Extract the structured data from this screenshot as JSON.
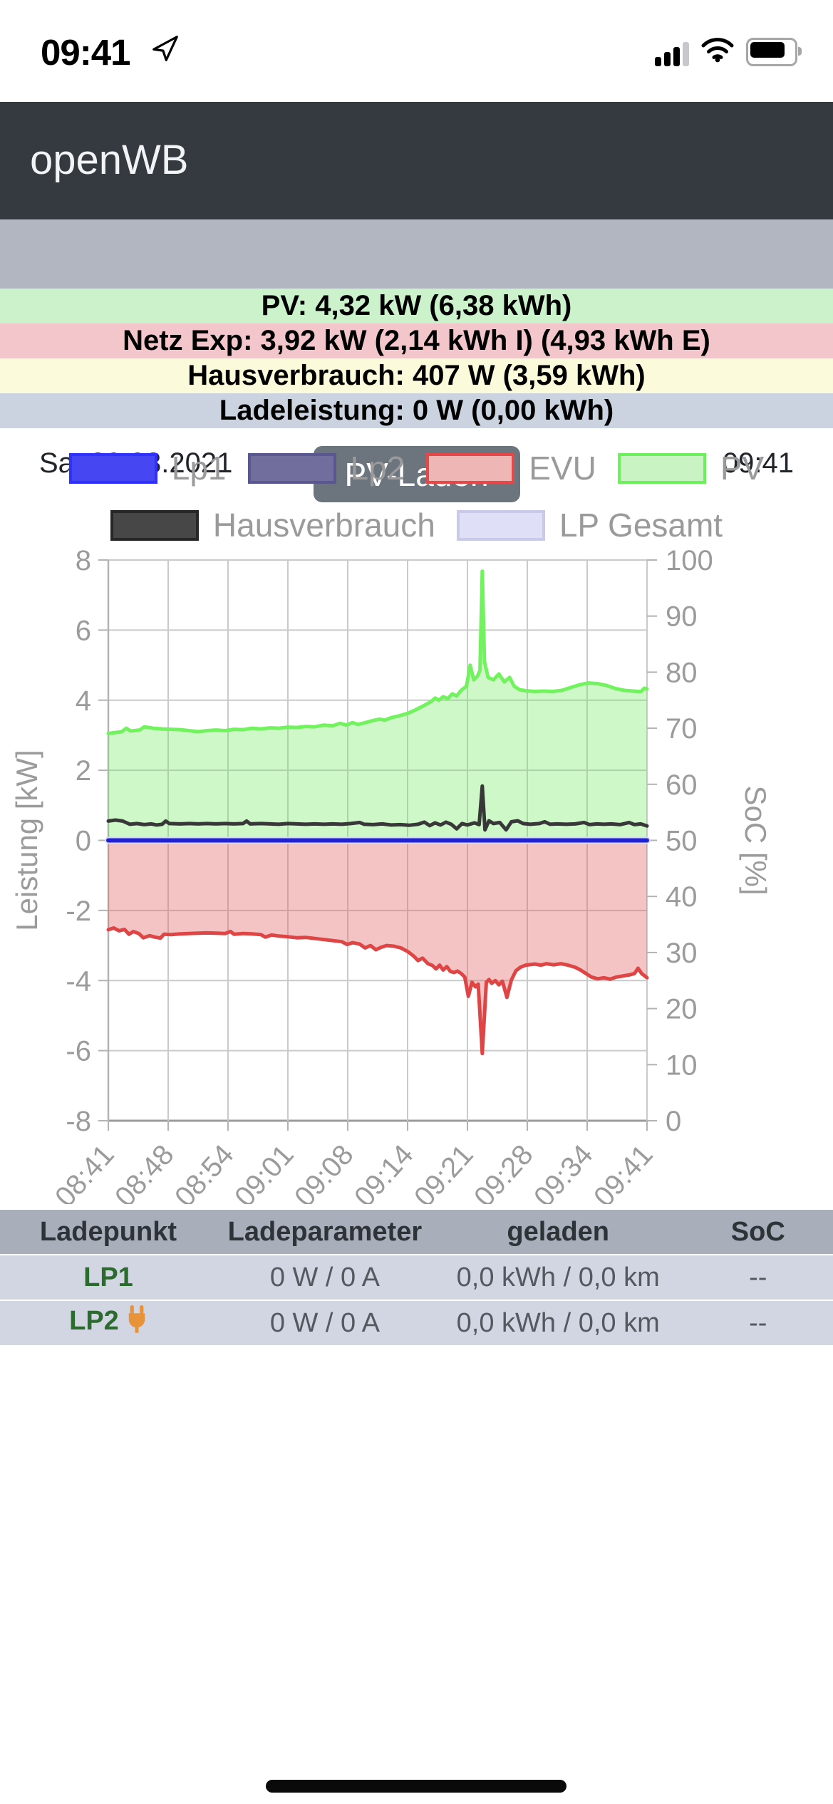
{
  "status_bar": {
    "time": "09:41"
  },
  "header": {
    "app_title": "openWB"
  },
  "sub_header": {
    "date": "Sa, 20.03.2021",
    "mode_button_label": "PV-Laden",
    "time": "09:41"
  },
  "status_rows": {
    "pv": {
      "text": "PV: 4,32 kW (6,38 kWh)",
      "bg": "#ccf2cc"
    },
    "grid": {
      "text": "Netz Exp: 3,92 kW (2,14 kWh I) (4,93 kWh E)",
      "bg": "#f2c6ca"
    },
    "house": {
      "text": "Hausverbrauch: 407 W (3,59 kWh)",
      "bg": "#fbfbdb"
    },
    "charge": {
      "text": "Ladeleistung: 0 W (0,00 kWh)",
      "bg": "#ccd3e0"
    }
  },
  "chart_data": {
    "type": "line",
    "y_left_label": "Leistung [kW]",
    "y_right_label": "SoC [%]",
    "x_tick_labels": [
      "08:41",
      "08:48",
      "08:54",
      "09:01",
      "09:08",
      "09:14",
      "09:21",
      "09:28",
      "09:34",
      "09:41"
    ],
    "y_left_ticks": [
      8,
      6,
      4,
      2,
      0,
      -2,
      -4,
      -6,
      -8
    ],
    "y_right_ticks": [
      100,
      90,
      80,
      70,
      60,
      50,
      40,
      30,
      20,
      10,
      0
    ],
    "y_left_range": [
      -8,
      8
    ],
    "y_right_range": [
      0,
      100
    ],
    "x_range_minutes": [
      0,
      60
    ],
    "grid": true,
    "legend_position": "top",
    "legend": [
      {
        "label": "Lp1",
        "fill": "#4646f2",
        "border": "#3030ff"
      },
      {
        "label": "Lp2",
        "fill": "#716d9c",
        "border": "#5a5690"
      },
      {
        "label": "EVU",
        "fill": "#efb6b6",
        "border": "#e44848"
      },
      {
        "label": "PV",
        "fill": "#c9f3c2",
        "border": "#6cf05c"
      },
      {
        "label": "Hausverbrauch",
        "fill": "#474747",
        "border": "#262626"
      },
      {
        "label": "LP Gesamt",
        "fill": "#dfdff8",
        "border": "#c9c9ea"
      }
    ],
    "series": [
      {
        "name": "PV",
        "color": "#72f25e",
        "fill": "rgba(110,235,90,0.33)",
        "width": 5,
        "points": [
          [
            0,
            3.05
          ],
          [
            1.5,
            3.1
          ],
          [
            2,
            3.2
          ],
          [
            2.5,
            3.12
          ],
          [
            3.5,
            3.15
          ],
          [
            4,
            3.24
          ],
          [
            5,
            3.2
          ],
          [
            6,
            3.18
          ],
          [
            7,
            3.17
          ],
          [
            8,
            3.16
          ],
          [
            9,
            3.13
          ],
          [
            10,
            3.1
          ],
          [
            11,
            3.13
          ],
          [
            12,
            3.15
          ],
          [
            13,
            3.13
          ],
          [
            14,
            3.17
          ],
          [
            15,
            3.16
          ],
          [
            16,
            3.2
          ],
          [
            17,
            3.18
          ],
          [
            18,
            3.21
          ],
          [
            19,
            3.2
          ],
          [
            20,
            3.23
          ],
          [
            21,
            3.22
          ],
          [
            22,
            3.25
          ],
          [
            23,
            3.24
          ],
          [
            24,
            3.29
          ],
          [
            25,
            3.27
          ],
          [
            25.8,
            3.34
          ],
          [
            26.5,
            3.29
          ],
          [
            27.2,
            3.36
          ],
          [
            27.8,
            3.31
          ],
          [
            28.5,
            3.35
          ],
          [
            29.5,
            3.42
          ],
          [
            30.2,
            3.46
          ],
          [
            30.8,
            3.43
          ],
          [
            31.5,
            3.5
          ],
          [
            32.5,
            3.56
          ],
          [
            33.5,
            3.64
          ],
          [
            34.2,
            3.72
          ],
          [
            34.8,
            3.8
          ],
          [
            35.4,
            3.88
          ],
          [
            36,
            3.97
          ],
          [
            36.4,
            4.06
          ],
          [
            36.8,
            4.0
          ],
          [
            37.3,
            4.1
          ],
          [
            37.8,
            4.04
          ],
          [
            38.3,
            4.18
          ],
          [
            38.8,
            4.12
          ],
          [
            39.3,
            4.28
          ],
          [
            39.9,
            4.4
          ],
          [
            40.3,
            5.0
          ],
          [
            40.7,
            4.58
          ],
          [
            41.1,
            4.68
          ],
          [
            41.4,
            4.85
          ],
          [
            41.65,
            7.68
          ],
          [
            41.9,
            5.1
          ],
          [
            42.3,
            4.65
          ],
          [
            42.9,
            4.58
          ],
          [
            43.5,
            4.75
          ],
          [
            44.1,
            4.52
          ],
          [
            44.7,
            4.65
          ],
          [
            45.2,
            4.4
          ],
          [
            45.8,
            4.3
          ],
          [
            46.5,
            4.27
          ],
          [
            47.5,
            4.25
          ],
          [
            48.5,
            4.26
          ],
          [
            49.5,
            4.25
          ],
          [
            50.5,
            4.28
          ],
          [
            51.5,
            4.36
          ],
          [
            52.5,
            4.44
          ],
          [
            53.5,
            4.49
          ],
          [
            54.5,
            4.47
          ],
          [
            55.5,
            4.42
          ],
          [
            56.5,
            4.33
          ],
          [
            57.5,
            4.28
          ],
          [
            58.5,
            4.26
          ],
          [
            59.3,
            4.24
          ],
          [
            59.7,
            4.34
          ],
          [
            60,
            4.32
          ]
        ]
      },
      {
        "name": "EVU",
        "color": "#e04545",
        "fill": "rgba(225,90,90,0.36)",
        "width": 5,
        "points": [
          [
            0,
            -2.55
          ],
          [
            0.6,
            -2.5
          ],
          [
            1.2,
            -2.58
          ],
          [
            1.8,
            -2.54
          ],
          [
            2.3,
            -2.68
          ],
          [
            2.8,
            -2.6
          ],
          [
            3.4,
            -2.66
          ],
          [
            3.9,
            -2.78
          ],
          [
            4.6,
            -2.72
          ],
          [
            5.2,
            -2.76
          ],
          [
            5.8,
            -2.79
          ],
          [
            6.2,
            -2.68
          ],
          [
            7,
            -2.69
          ],
          [
            8,
            -2.67
          ],
          [
            9,
            -2.66
          ],
          [
            10,
            -2.65
          ],
          [
            11,
            -2.64
          ],
          [
            12,
            -2.65
          ],
          [
            13,
            -2.66
          ],
          [
            13.6,
            -2.6
          ],
          [
            14,
            -2.68
          ],
          [
            15,
            -2.66
          ],
          [
            16,
            -2.67
          ],
          [
            17,
            -2.69
          ],
          [
            17.5,
            -2.76
          ],
          [
            18.2,
            -2.7
          ],
          [
            19,
            -2.73
          ],
          [
            20,
            -2.75
          ],
          [
            21,
            -2.78
          ],
          [
            22,
            -2.77
          ],
          [
            23,
            -2.8
          ],
          [
            24,
            -2.83
          ],
          [
            25,
            -2.86
          ],
          [
            26,
            -2.89
          ],
          [
            26.6,
            -2.97
          ],
          [
            27.2,
            -2.92
          ],
          [
            28,
            -2.96
          ],
          [
            28.6,
            -3.07
          ],
          [
            29.2,
            -3.0
          ],
          [
            29.8,
            -3.12
          ],
          [
            30.4,
            -3.05
          ],
          [
            31,
            -3.0
          ],
          [
            31.8,
            -3.02
          ],
          [
            32.6,
            -3.07
          ],
          [
            33.4,
            -3.18
          ],
          [
            34,
            -3.3
          ],
          [
            34.5,
            -3.43
          ],
          [
            35,
            -3.36
          ],
          [
            35.6,
            -3.52
          ],
          [
            36.1,
            -3.57
          ],
          [
            36.5,
            -3.67
          ],
          [
            36.9,
            -3.56
          ],
          [
            37.3,
            -3.7
          ],
          [
            37.7,
            -3.6
          ],
          [
            38.1,
            -3.74
          ],
          [
            38.5,
            -3.77
          ],
          [
            38.9,
            -3.73
          ],
          [
            39.3,
            -3.8
          ],
          [
            39.7,
            -3.9
          ],
          [
            40.1,
            -4.45
          ],
          [
            40.5,
            -4.05
          ],
          [
            40.9,
            -4.18
          ],
          [
            41.2,
            -4.1
          ],
          [
            41.65,
            -6.08
          ],
          [
            42.1,
            -4.05
          ],
          [
            42.4,
            -3.97
          ],
          [
            42.7,
            -4.08
          ],
          [
            43.1,
            -4.0
          ],
          [
            43.5,
            -4.12
          ],
          [
            43.9,
            -4.02
          ],
          [
            44.4,
            -4.48
          ],
          [
            44.9,
            -3.98
          ],
          [
            45.4,
            -3.72
          ],
          [
            45.9,
            -3.62
          ],
          [
            46.5,
            -3.56
          ],
          [
            47.5,
            -3.53
          ],
          [
            48.2,
            -3.56
          ],
          [
            48.8,
            -3.52
          ],
          [
            49.6,
            -3.55
          ],
          [
            50.4,
            -3.52
          ],
          [
            51.2,
            -3.56
          ],
          [
            52,
            -3.62
          ],
          [
            52.6,
            -3.7
          ],
          [
            53.2,
            -3.8
          ],
          [
            53.8,
            -3.9
          ],
          [
            54.5,
            -3.95
          ],
          [
            55.2,
            -3.92
          ],
          [
            55.9,
            -3.96
          ],
          [
            56.6,
            -3.9
          ],
          [
            57.3,
            -3.87
          ],
          [
            58,
            -3.84
          ],
          [
            58.6,
            -3.8
          ],
          [
            59,
            -3.65
          ],
          [
            59.4,
            -3.8
          ],
          [
            60,
            -3.92
          ]
        ]
      },
      {
        "name": "LP Gesamt",
        "color": "#d9d9f6",
        "fill": "none",
        "width": 10,
        "points": [
          [
            0,
            0
          ],
          [
            60,
            0
          ]
        ]
      },
      {
        "name": "Lp1",
        "color": "#2121d6",
        "fill": "none",
        "width": 6,
        "points": [
          [
            0,
            0
          ],
          [
            60,
            0
          ]
        ]
      },
      {
        "name": "Hausverbrauch",
        "color": "#383838",
        "fill": "none",
        "width": 5,
        "points": [
          [
            0,
            0.55
          ],
          [
            0.8,
            0.58
          ],
          [
            1.6,
            0.55
          ],
          [
            2.4,
            0.46
          ],
          [
            3.2,
            0.48
          ],
          [
            4,
            0.45
          ],
          [
            4.8,
            0.47
          ],
          [
            5.4,
            0.44
          ],
          [
            6,
            0.46
          ],
          [
            6.4,
            0.55
          ],
          [
            6.8,
            0.48
          ],
          [
            8,
            0.47
          ],
          [
            9,
            0.48
          ],
          [
            10,
            0.47
          ],
          [
            11,
            0.48
          ],
          [
            12,
            0.47
          ],
          [
            13,
            0.48
          ],
          [
            14,
            0.47
          ],
          [
            15,
            0.48
          ],
          [
            15.4,
            0.55
          ],
          [
            15.8,
            0.47
          ],
          [
            17,
            0.48
          ],
          [
            18,
            0.47
          ],
          [
            19,
            0.46
          ],
          [
            20,
            0.48
          ],
          [
            21,
            0.47
          ],
          [
            22,
            0.46
          ],
          [
            23,
            0.47
          ],
          [
            24,
            0.46
          ],
          [
            25,
            0.47
          ],
          [
            26,
            0.46
          ],
          [
            27,
            0.48
          ],
          [
            28,
            0.51
          ],
          [
            28.5,
            0.46
          ],
          [
            29.5,
            0.45
          ],
          [
            30.5,
            0.47
          ],
          [
            31.5,
            0.44
          ],
          [
            32.5,
            0.45
          ],
          [
            33.5,
            0.43
          ],
          [
            34.5,
            0.46
          ],
          [
            35.2,
            0.52
          ],
          [
            35.8,
            0.42
          ],
          [
            36.4,
            0.5
          ],
          [
            37,
            0.44
          ],
          [
            37.6,
            0.52
          ],
          [
            38.2,
            0.46
          ],
          [
            38.8,
            0.33
          ],
          [
            39.4,
            0.48
          ],
          [
            40,
            0.44
          ],
          [
            40.8,
            0.5
          ],
          [
            41.3,
            0.45
          ],
          [
            41.65,
            1.55
          ],
          [
            41.95,
            0.3
          ],
          [
            42.4,
            0.56
          ],
          [
            42.9,
            0.48
          ],
          [
            43.6,
            0.51
          ],
          [
            44.3,
            0.3
          ],
          [
            44.9,
            0.53
          ],
          [
            45.6,
            0.56
          ],
          [
            46.2,
            0.48
          ],
          [
            47,
            0.46
          ],
          [
            48,
            0.48
          ],
          [
            48.6,
            0.53
          ],
          [
            49.2,
            0.46
          ],
          [
            50,
            0.47
          ],
          [
            51,
            0.46
          ],
          [
            52,
            0.47
          ],
          [
            53,
            0.51
          ],
          [
            53.6,
            0.45
          ],
          [
            54.4,
            0.47
          ],
          [
            55.2,
            0.46
          ],
          [
            56,
            0.47
          ],
          [
            57,
            0.45
          ],
          [
            58,
            0.51
          ],
          [
            58.6,
            0.45
          ],
          [
            59.3,
            0.47
          ],
          [
            60,
            0.41
          ]
        ]
      }
    ]
  },
  "table": {
    "headers": [
      "Ladepunkt",
      "Ladeparameter",
      "geladen",
      "SoC"
    ],
    "rows": [
      {
        "name": "LP1",
        "has_plug_icon": false,
        "params": "0 W / 0 A",
        "charged": "0,0 kWh / 0,0 km",
        "soc": "--"
      },
      {
        "name": "LP2",
        "has_plug_icon": true,
        "params": "0 W / 0 A",
        "charged": "0,0 kWh / 0,0 km",
        "soc": "--"
      }
    ]
  },
  "colors": {
    "header_bg": "#343a40",
    "datebar_bg": "#b2b6c1",
    "mode_button_bg": "#6c757d",
    "table_header_bg": "#a9aebb",
    "table_row_bg": "#d1d6e2",
    "plug_icon": "#e8923a",
    "lp_name_green": "#2c6b2e"
  }
}
